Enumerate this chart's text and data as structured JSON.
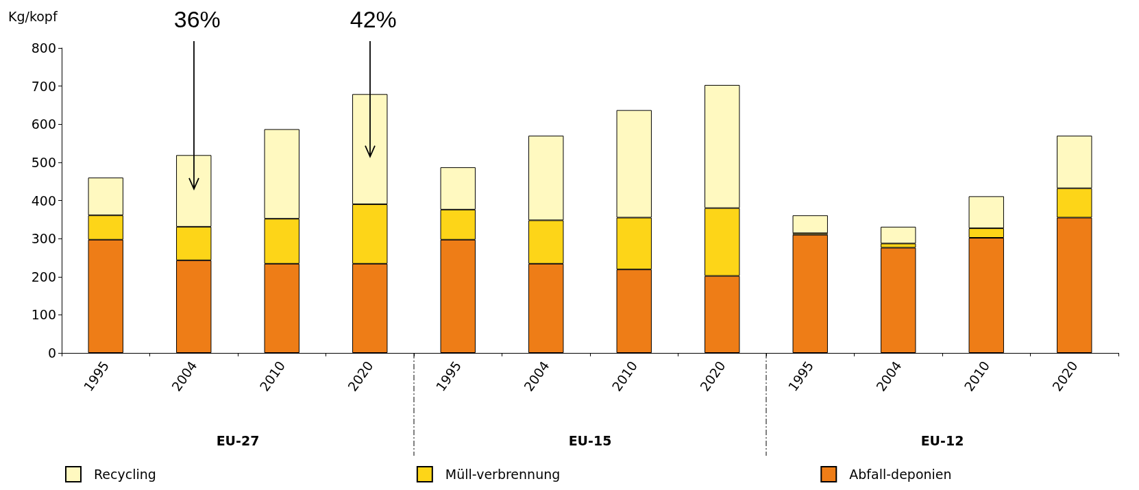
{
  "chart_data": {
    "type": "bar",
    "stacked": true,
    "ylabel": "Kg/kopf",
    "categories": [
      "1995",
      "2004",
      "2010",
      "2020",
      "1995",
      "2004",
      "2010",
      "2020",
      "1995",
      "2004",
      "2010",
      "2020"
    ],
    "series": [
      {
        "name": "Abfall-deponien",
        "color": "#ee7d17",
        "values": [
          297,
          243,
          234,
          234,
          297,
          234,
          219,
          202,
          310,
          276,
          302,
          355
        ]
      },
      {
        "name": "Müll-verbrennung",
        "color": "#fdd518",
        "values": [
          64,
          88,
          118,
          156,
          79,
          114,
          136,
          178,
          4,
          11,
          25,
          77
        ]
      },
      {
        "name": "Recycling",
        "color": "#fff9c0",
        "values": [
          99,
          188,
          235,
          289,
          111,
          222,
          282,
          323,
          47,
          44,
          84,
          138
        ]
      }
    ],
    "ylim": [
      0,
      800
    ],
    "yticks": [
      0,
      100,
      200,
      300,
      400,
      500,
      600,
      700,
      800
    ],
    "grid": false,
    "legend": "bottom",
    "annotations": [
      "36%",
      "42%",
      "EU-27",
      "EU-15",
      "EU-12"
    ]
  }
}
